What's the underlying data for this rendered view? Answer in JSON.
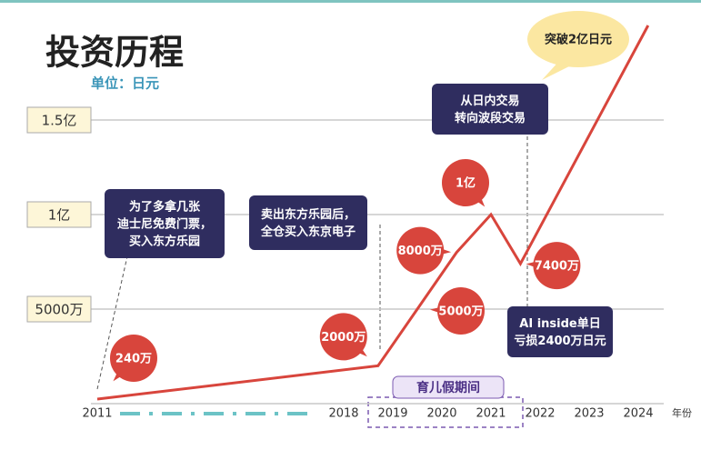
{
  "chart_data": {
    "type": "line",
    "title": "投资历程",
    "unit": "单位：日元",
    "xlabel": "年份",
    "x": [
      2011,
      2018.7,
      2019.5,
      2020.3,
      2021.0,
      2021.6,
      2024.2
    ],
    "series": [
      {
        "color": "#d8453c",
        "values": [
          2400000,
          20000000,
          50000000,
          80000000,
          100000000,
          74000000,
          200000000
        ],
        "value_labels": [
          "240万",
          "2000万",
          "5000万",
          "8000万",
          "1亿",
          "7400万",
          null
        ]
      }
    ],
    "xticks": [
      2011,
      2018,
      2019,
      2020,
      2021,
      2022,
      2023,
      2024
    ],
    "ylim": [
      0,
      200000000
    ],
    "yticks": [
      {
        "value": 50000000,
        "label": "5000万"
      },
      {
        "value": 100000000,
        "label": "1亿"
      },
      {
        "value": 150000000,
        "label": "1.5亿"
      }
    ],
    "grid": true,
    "annotations": [
      {
        "lines": [
          "为了多拿几张",
          "迪士尼免费门票，",
          "买入东方乐园"
        ]
      },
      {
        "lines": [
          "卖出东方乐园后，",
          "全仓买入东京电子"
        ]
      },
      {
        "lines": [
          "从日内交易",
          "转向波段交易"
        ]
      },
      {
        "lines": [
          "AI inside单日",
          "亏损2400万日元"
        ]
      },
      {
        "lines": [
          "突破2亿日元"
        ]
      },
      {
        "lines": [
          "育儿假期间"
        ]
      }
    ]
  }
}
